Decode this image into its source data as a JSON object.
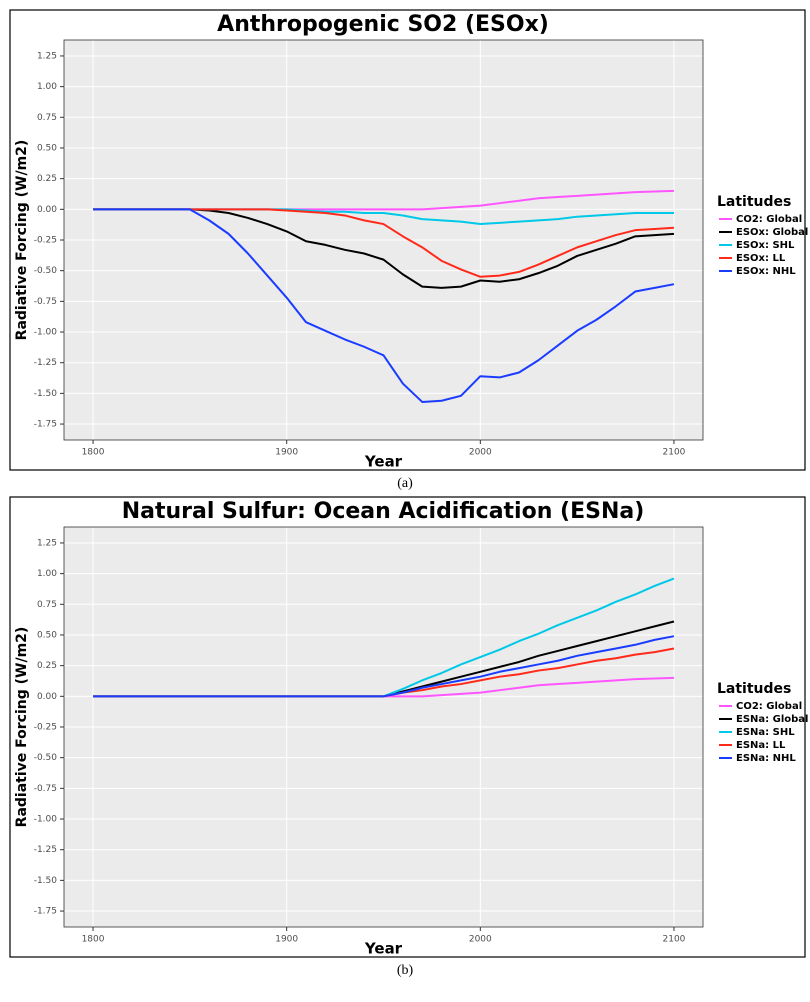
{
  "chart_data": [
    {
      "type": "line",
      "title": "Anthropogenic SO2 (ESOx)",
      "x_label": "Year",
      "y_label": "Radiative Forcing (W/m2)",
      "caption": "(a)",
      "legend_title": "Latitudes",
      "legend": "right",
      "grid": true,
      "xlim": [
        1785,
        2115
      ],
      "ylim": [
        -1.88,
        1.38
      ],
      "xticks": [
        1800,
        1900,
        2000,
        2100
      ],
      "yticks": [
        1.25,
        {
          "value": 1,
          "label": "1.00"
        },
        0.75,
        {
          "value": 0.5,
          "label": "0.50"
        },
        0.25,
        {
          "value": 0,
          "label": "0.00"
        },
        -0.25,
        {
          "value": -0.5,
          "label": "-0.50"
        },
        -0.75,
        {
          "value": -1,
          "label": "-1.00"
        },
        -1.25,
        {
          "value": -1.5,
          "label": "-1.50"
        },
        -1.75
      ],
      "x": [
        1800,
        1810,
        1820,
        1830,
        1840,
        1850,
        1860,
        1870,
        1880,
        1890,
        1900,
        1910,
        1920,
        1930,
        1940,
        1950,
        1960,
        1970,
        1980,
        1990,
        2000,
        2010,
        2020,
        2030,
        2040,
        2050,
        2060,
        2070,
        2080,
        2090,
        2100
      ],
      "series": [
        {
          "name": "CO2: Global",
          "color": "#ff55ff",
          "values": [
            0,
            0,
            0,
            0,
            0,
            0,
            0,
            0,
            0,
            0,
            0,
            0,
            0,
            0,
            0,
            0,
            0,
            0,
            0.01,
            0.02,
            0.03,
            0.05,
            0.07,
            0.09,
            0.1,
            0.11,
            0.12,
            0.13,
            0.14,
            0.145,
            0.15
          ]
        },
        {
          "name": "ESOx: Global",
          "color": "#000000",
          "values": [
            0,
            0,
            0,
            0,
            0,
            0,
            -0.01,
            -0.03,
            -0.07,
            -0.12,
            -0.18,
            -0.26,
            -0.29,
            -0.33,
            -0.36,
            -0.41,
            -0.53,
            -0.63,
            -0.64,
            -0.63,
            -0.58,
            -0.59,
            -0.57,
            -0.52,
            -0.46,
            -0.38,
            -0.33,
            -0.28,
            -0.22,
            -0.21,
            -0.2
          ]
        },
        {
          "name": "ESOx: SHL",
          "color": "#00c8e8",
          "values": [
            0,
            0,
            0,
            0,
            0,
            0,
            0,
            0,
            0,
            0,
            0,
            -0.01,
            -0.02,
            -0.02,
            -0.03,
            -0.03,
            -0.05,
            -0.08,
            -0.09,
            -0.1,
            -0.12,
            -0.11,
            -0.1,
            -0.09,
            -0.08,
            -0.06,
            -0.05,
            -0.04,
            -0.03,
            -0.03,
            -0.03
          ]
        },
        {
          "name": "ESOx: LL",
          "color": "#ff2a1a",
          "values": [
            0,
            0,
            0,
            0,
            0,
            0,
            0,
            0,
            0,
            0,
            -0.01,
            -0.02,
            -0.03,
            -0.05,
            -0.09,
            -0.12,
            -0.22,
            -0.31,
            -0.42,
            -0.49,
            -0.55,
            -0.54,
            -0.51,
            -0.45,
            -0.38,
            -0.31,
            -0.26,
            -0.21,
            -0.17,
            -0.16,
            -0.15
          ]
        },
        {
          "name": "ESOx: NHL",
          "color": "#1a3cff",
          "values": [
            0,
            0,
            0,
            0,
            0,
            0,
            -0.09,
            -0.2,
            -0.36,
            -0.54,
            -0.72,
            -0.92,
            -0.99,
            -1.06,
            -1.12,
            -1.19,
            -1.42,
            -1.57,
            -1.56,
            -1.52,
            -1.36,
            -1.37,
            -1.33,
            -1.23,
            -1.11,
            -0.99,
            -0.9,
            -0.79,
            -0.67,
            -0.64,
            -0.61
          ]
        }
      ]
    },
    {
      "type": "line",
      "title": "Natural Sulfur: Ocean Acidification (ESNa)",
      "x_label": "Year",
      "y_label": "Radiative Forcing (W/m2)",
      "caption": "(b)",
      "legend_title": "Latitudes",
      "legend": "right",
      "grid": true,
      "xlim": [
        1785,
        2115
      ],
      "ylim": [
        -1.88,
        1.38
      ],
      "xticks": [
        1800,
        1900,
        2000,
        2100
      ],
      "yticks": [
        1.25,
        {
          "value": 1,
          "label": "1.00"
        },
        0.75,
        {
          "value": 0.5,
          "label": "0.50"
        },
        0.25,
        {
          "value": 0,
          "label": "0.00"
        },
        -0.25,
        {
          "value": -0.5,
          "label": "-0.50"
        },
        -0.75,
        {
          "value": -1,
          "label": "-1.00"
        },
        -1.25,
        {
          "value": -1.5,
          "label": "-1.50"
        },
        -1.75
      ],
      "x": [
        1800,
        1810,
        1820,
        1830,
        1840,
        1850,
        1860,
        1870,
        1880,
        1890,
        1900,
        1910,
        1920,
        1930,
        1940,
        1950,
        1960,
        1970,
        1980,
        1990,
        2000,
        2010,
        2020,
        2030,
        2040,
        2050,
        2060,
        2070,
        2080,
        2090,
        2100
      ],
      "series": [
        {
          "name": "CO2: Global",
          "color": "#ff55ff",
          "values": [
            0,
            0,
            0,
            0,
            0,
            0,
            0,
            0,
            0,
            0,
            0,
            0,
            0,
            0,
            0,
            0,
            0,
            0,
            0.01,
            0.02,
            0.03,
            0.05,
            0.07,
            0.09,
            0.1,
            0.11,
            0.12,
            0.13,
            0.14,
            0.145,
            0.15
          ]
        },
        {
          "name": "ESNa: Global",
          "color": "#000000",
          "values": [
            0,
            0,
            0,
            0,
            0,
            0,
            0,
            0,
            0,
            0,
            0,
            0,
            0,
            0,
            0,
            0,
            0.04,
            0.08,
            0.12,
            0.16,
            0.2,
            0.24,
            0.28,
            0.33,
            0.37,
            0.41,
            0.45,
            0.49,
            0.53,
            0.57,
            0.61
          ]
        },
        {
          "name": "ESNa: SHL",
          "color": "#00c8e8",
          "values": [
            0,
            0,
            0,
            0,
            0,
            0,
            0,
            0,
            0,
            0,
            0,
            0,
            0,
            0,
            0,
            0,
            0.06,
            0.13,
            0.19,
            0.26,
            0.32,
            0.38,
            0.45,
            0.51,
            0.58,
            0.64,
            0.7,
            0.77,
            0.83,
            0.9,
            0.96
          ]
        },
        {
          "name": "ESNa: LL",
          "color": "#ff2a1a",
          "values": [
            0,
            0,
            0,
            0,
            0,
            0,
            0,
            0,
            0,
            0,
            0,
            0,
            0,
            0,
            0,
            0,
            0.03,
            0.05,
            0.08,
            0.1,
            0.13,
            0.16,
            0.18,
            0.21,
            0.23,
            0.26,
            0.29,
            0.31,
            0.34,
            0.36,
            0.39
          ]
        },
        {
          "name": "ESNa: NHL",
          "color": "#1a3cff",
          "values": [
            0,
            0,
            0,
            0,
            0,
            0,
            0,
            0,
            0,
            0,
            0,
            0,
            0,
            0,
            0,
            0,
            0.03,
            0.07,
            0.1,
            0.13,
            0.16,
            0.2,
            0.23,
            0.26,
            0.29,
            0.33,
            0.36,
            0.39,
            0.42,
            0.46,
            0.49
          ]
        }
      ]
    }
  ]
}
